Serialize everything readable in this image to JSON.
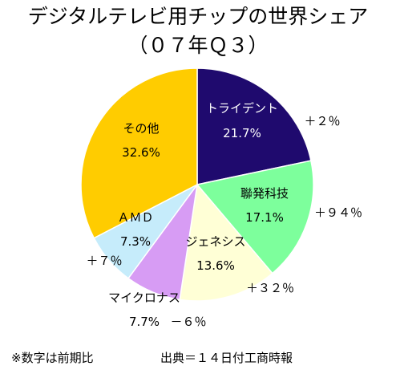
{
  "chart_data": {
    "type": "pie",
    "title": "デジタルテレビ用チップの世界シェア",
    "subtitle": "（０７年Ｑ３）",
    "slices": [
      {
        "name": "トライデント",
        "value": 21.7,
        "value_label": "21.7%",
        "change": "＋２％",
        "color": "#1f0a6e",
        "text_color": "#ffffff"
      },
      {
        "name": "聯発科技",
        "value": 17.1,
        "value_label": "17.1%",
        "change": "＋９４％",
        "color": "#7dff9c",
        "text_color": "#000000"
      },
      {
        "name": "ジェネシス",
        "value": 13.6,
        "value_label": "13.6%",
        "change": "＋３２％",
        "color": "#ffffd6",
        "text_color": "#000000"
      },
      {
        "name": "マイクロナス",
        "value": 7.7,
        "value_label": "7.7%",
        "change": "－６％",
        "color": "#d79cf4",
        "text_color": "#000000"
      },
      {
        "name": "ＡＭＤ",
        "value": 7.3,
        "value_label": "7.3%",
        "change": "＋７％",
        "color": "#c6ecfb",
        "text_color": "#000000"
      },
      {
        "name": "その他",
        "value": 32.6,
        "value_label": "32.6%",
        "change": "",
        "color": "#ffcc00",
        "text_color": "#000000"
      }
    ],
    "start_angle": "12 o'clock",
    "direction": "clockwise"
  },
  "footer": {
    "note": "※数字は前期比",
    "source": "出典＝１４日付工商時報"
  }
}
